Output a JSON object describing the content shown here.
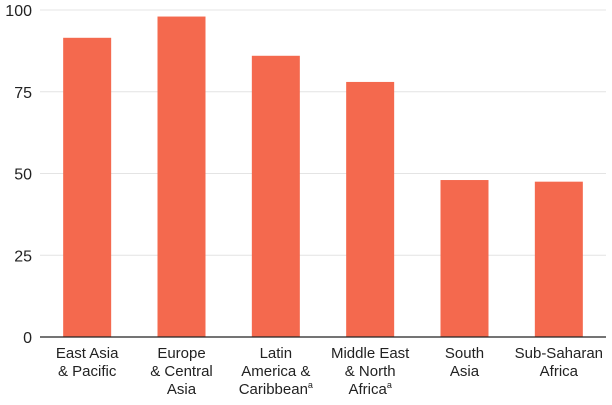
{
  "chart_data": {
    "type": "bar",
    "categories": [
      [
        "East Asia",
        "& Pacific"
      ],
      [
        "Europe",
        "& Central",
        "Asia"
      ],
      [
        "Latin",
        "America &",
        "Caribbean"
      ],
      [
        "Middle East",
        "& North",
        "Africa"
      ],
      [
        "South",
        "Asia"
      ],
      [
        "Sub-Saharan",
        "Africa"
      ]
    ],
    "category_footnotes": [
      "",
      "",
      "a",
      "a",
      "",
      ""
    ],
    "values": [
      91.5,
      98,
      86,
      78,
      48,
      47.5
    ],
    "ylim": [
      0,
      100
    ],
    "yticks": [
      0,
      25,
      50,
      75,
      100
    ],
    "bar_color": "#f4694e",
    "grid": true
  }
}
